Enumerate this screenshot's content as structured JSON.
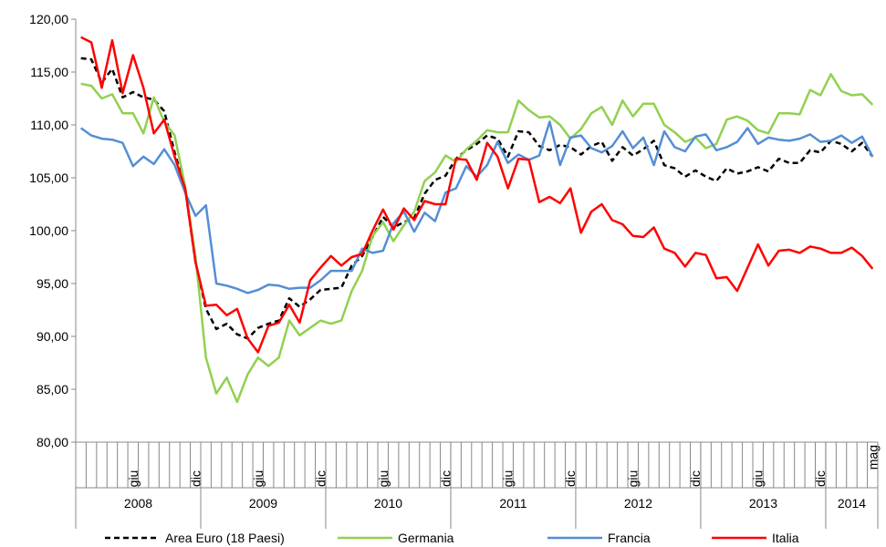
{
  "chart_data": {
    "type": "line",
    "categories": [
      null,
      null,
      null,
      null,
      null,
      "giu",
      null,
      null,
      null,
      null,
      null,
      "dic",
      null,
      null,
      null,
      null,
      null,
      "giu",
      null,
      null,
      null,
      null,
      null,
      "dic",
      null,
      null,
      null,
      null,
      null,
      "giu",
      null,
      null,
      null,
      null,
      null,
      "dic",
      null,
      null,
      null,
      null,
      null,
      "giu",
      null,
      null,
      null,
      null,
      null,
      "dic",
      null,
      null,
      null,
      null,
      null,
      "giu",
      null,
      null,
      null,
      null,
      null,
      "dic",
      null,
      null,
      null,
      null,
      null,
      "giu",
      null,
      null,
      null,
      null,
      null,
      "dic",
      null,
      null,
      null,
      null,
      "mag"
    ],
    "year_groups": [
      {
        "label": "2008",
        "span": 12
      },
      {
        "label": "2009",
        "span": 12
      },
      {
        "label": "2010",
        "span": 12
      },
      {
        "label": "2011",
        "span": 12
      },
      {
        "label": "2012",
        "span": 12
      },
      {
        "label": "2013",
        "span": 12
      },
      {
        "label": "2014",
        "span": 5
      }
    ],
    "ylim": [
      80,
      120
    ],
    "yticks": [
      {
        "value": 80,
        "label": "80,00"
      },
      {
        "value": 85,
        "label": "85,00"
      },
      {
        "value": 90,
        "label": "90,00"
      },
      {
        "value": 95,
        "label": "95,00"
      },
      {
        "value": 100,
        "label": "100,00"
      },
      {
        "value": 105,
        "label": "105,00"
      },
      {
        "value": 110,
        "label": "110,00"
      },
      {
        "value": 115,
        "label": "115,00"
      },
      {
        "value": 120,
        "label": "120,00"
      }
    ],
    "legend": "bottom",
    "series": [
      {
        "name": "Area Euro (18 Paesi)",
        "color": "#000000",
        "dashed": true,
        "values": [
          116.3,
          116.2,
          114,
          115.3,
          112.6,
          113.1,
          112.6,
          112.4,
          111.3,
          107.4,
          104,
          97,
          92.6,
          90.7,
          91.2,
          90.2,
          89.8,
          90.8,
          91.2,
          91.5,
          93.6,
          92.8,
          93.5,
          94.4,
          94.5,
          94.6,
          96.7,
          97.6,
          99.4,
          101.3,
          100.3,
          100.8,
          101.2,
          103.5,
          104.8,
          105.2,
          106.8,
          107.6,
          108.2,
          109,
          108.7,
          107,
          109.4,
          109.3,
          108,
          107.6,
          108.1,
          107.9,
          107.2,
          108,
          108.4,
          106.6,
          107.9,
          107.1,
          107.7,
          108.5,
          106.2,
          105.9,
          105.1,
          105.7,
          105.1,
          104.7,
          105.9,
          105.4,
          105.6,
          106,
          105.6,
          106.8,
          106.4,
          106.4,
          107.6,
          107.4,
          108.5,
          108.2,
          107.5,
          108.3,
          107
        ]
      },
      {
        "name": "Germania",
        "color": "#92d050",
        "values": [
          113.9,
          113.7,
          112.5,
          112.9,
          111.1,
          111.1,
          109.2,
          112.6,
          110.3,
          109,
          104.2,
          97.5,
          88,
          84.6,
          86.1,
          83.8,
          86.4,
          88,
          87.2,
          88,
          91.5,
          90.1,
          90.8,
          91.5,
          91.2,
          91.5,
          94.3,
          96.2,
          99.5,
          100.8,
          99,
          100.5,
          101.8,
          104.7,
          105.5,
          107.1,
          106.5,
          107.7,
          108.5,
          109.5,
          109.3,
          109.3,
          112.3,
          111.4,
          110.7,
          110.8,
          110,
          108.7,
          109.6,
          111.1,
          111.7,
          110,
          112.3,
          110.8,
          112,
          112,
          110,
          109.3,
          108.4,
          108.8,
          107.8,
          108.2,
          110.5,
          110.8,
          110.4,
          109.5,
          109.2,
          111.1,
          111.1,
          111,
          113.3,
          112.8,
          114.8,
          113.2,
          112.8,
          112.9,
          111.9
        ]
      },
      {
        "name": "Francia",
        "color": "#558ed5",
        "values": [
          109.7,
          109,
          108.7,
          108.6,
          108.3,
          106.1,
          107,
          106.3,
          107.7,
          106.2,
          103.6,
          101.4,
          102.4,
          95,
          94.8,
          94.5,
          94.1,
          94.4,
          94.9,
          94.8,
          94.5,
          94.6,
          94.6,
          95.3,
          96.2,
          96.2,
          96.2,
          98.3,
          97.9,
          98.1,
          100.7,
          101.8,
          99.9,
          101.7,
          100.9,
          103.6,
          104,
          106.1,
          105.1,
          106.2,
          108.4,
          106.4,
          107.2,
          106.7,
          107.1,
          110.3,
          106.2,
          108.8,
          109,
          107.8,
          107.4,
          108,
          109.4,
          107.8,
          108.8,
          106.2,
          109.4,
          107.9,
          107.5,
          108.9,
          109.1,
          107.6,
          107.9,
          108.4,
          109.7,
          108.2,
          108.8,
          108.6,
          108.5,
          108.7,
          109.1,
          108.4,
          108.5,
          109,
          108.3,
          108.9,
          107
        ]
      },
      {
        "name": "Italia",
        "color": "#ff0000",
        "values": [
          118.3,
          117.8,
          113.5,
          118,
          113,
          116.6,
          113.5,
          109.2,
          110.5,
          107,
          104,
          97,
          92.9,
          93,
          92,
          92.6,
          89.8,
          88.5,
          91,
          91.3,
          93,
          91.3,
          95.3,
          96.5,
          97.6,
          96.7,
          97.5,
          97.8,
          100,
          102,
          100.1,
          102.1,
          101,
          102.8,
          102.5,
          102.5,
          106.8,
          106.7,
          104.8,
          108.3,
          107,
          104,
          106.8,
          106.7,
          102.7,
          103.2,
          102.6,
          104,
          99.8,
          101.8,
          102.5,
          101,
          100.6,
          99.5,
          99.4,
          100.3,
          98.3,
          97.9,
          96.6,
          97.9,
          97.7,
          95.5,
          95.6,
          94.3,
          96.5,
          98.7,
          96.7,
          98.1,
          98.2,
          97.9,
          98.5,
          98.3,
          97.9,
          97.9,
          98.4,
          97.6,
          96.4
        ]
      }
    ]
  }
}
